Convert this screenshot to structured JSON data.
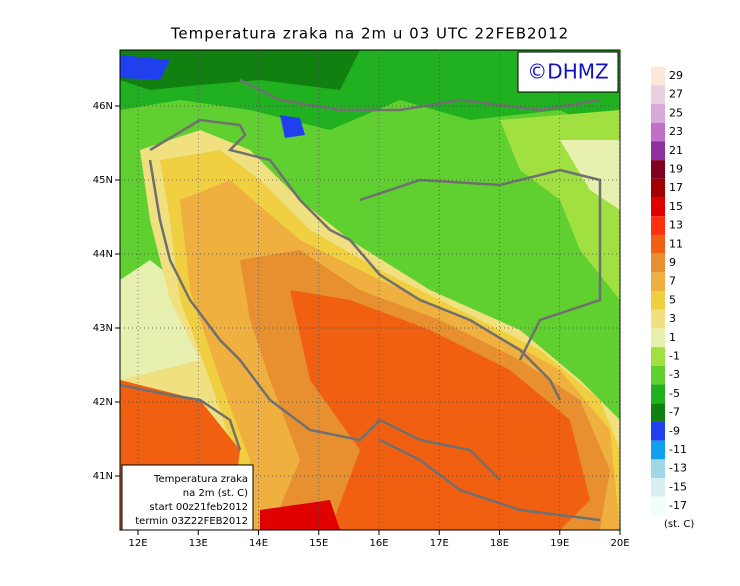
{
  "header": {
    "title": "Temperatura zraka na 2m u 03 UTC 22FEB2012"
  },
  "logo": "©DHMZ",
  "map": {
    "lat_labels": [
      "46N",
      "45N",
      "44N",
      "43N",
      "42N",
      "41N"
    ],
    "lon_labels": [
      "12E",
      "13E",
      "14E",
      "15E",
      "16E",
      "17E",
      "18E",
      "19E",
      "20E"
    ]
  },
  "legend_box": {
    "lines": [
      "Temperatura zraka",
      "na 2m (st. C)",
      "start 00z21feb2012",
      "termin 03Z22FEB2012"
    ]
  },
  "colorbar": {
    "levels": [
      29,
      27,
      25,
      23,
      21,
      19,
      17,
      15,
      13,
      11,
      9,
      7,
      5,
      3,
      1,
      -1,
      -3,
      -5,
      -7,
      -9,
      -11,
      -13,
      -15,
      -17
    ],
    "colors": [
      "#fbe8d8",
      "#e8d0e0",
      "#d8a8d8",
      "#c070c8",
      "#9030a0",
      "#800020",
      "#a00000",
      "#e00000",
      "#ff3010",
      "#f06010",
      "#e89030",
      "#f0b040",
      "#f0d040",
      "#f0e080",
      "#e8f0b0",
      "#a0e040",
      "#60d030",
      "#20b020",
      "#108010",
      "#2040f0",
      "#10a0f0",
      "#a0d8e8",
      "#d8f0f0",
      "#f0fff8"
    ],
    "unit": "(st. C)"
  }
}
